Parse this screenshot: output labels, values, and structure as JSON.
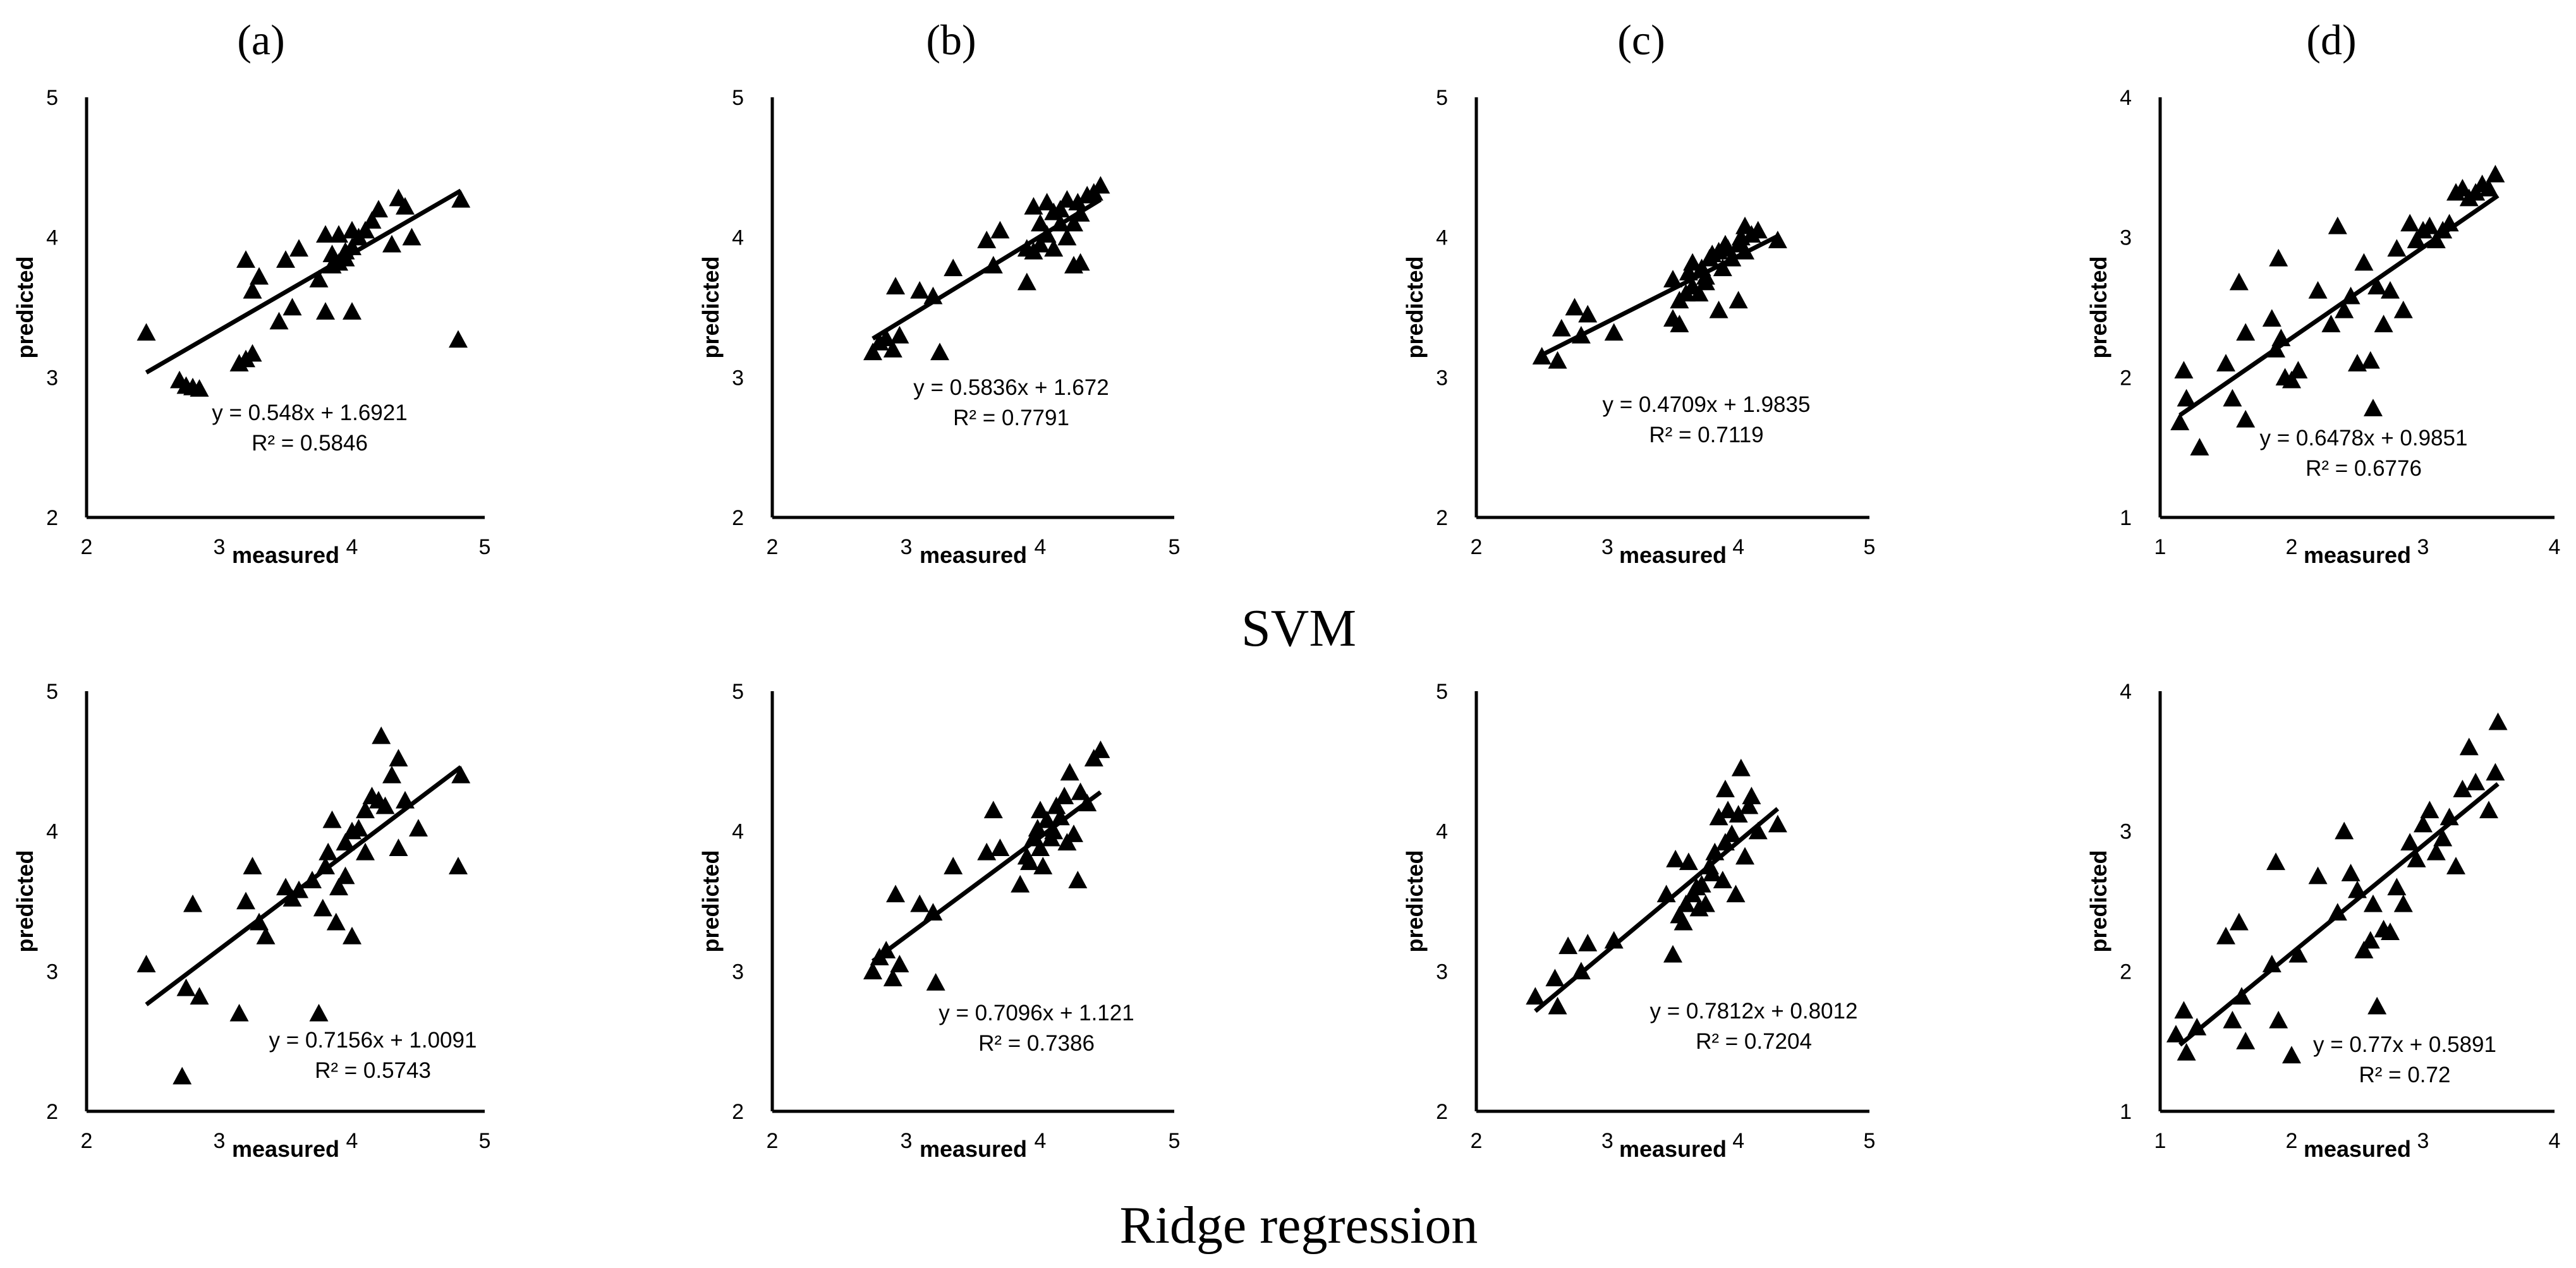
{
  "panel_labels": [
    "(a)",
    "(b)",
    "(c)",
    "(d)"
  ],
  "row_labels": [
    "SVM",
    "Ridge regression"
  ],
  "chart_data": [
    {
      "type": "scatter",
      "panel": "(a)",
      "model": "SVM",
      "xlabel": "measured",
      "ylabel": "predicted",
      "xlim": [
        2,
        5
      ],
      "ylim": [
        2,
        5
      ],
      "xticks": [
        "2",
        "3",
        "4",
        "5"
      ],
      "yticks": [
        "2",
        "3",
        "4",
        "5"
      ],
      "equation": "y = 0.548x + 1.6921",
      "r2_label": "R² = 0.5846",
      "fit": {
        "slope": 0.548,
        "intercept": 1.6921,
        "x_range": [
          2.45,
          4.82
        ]
      },
      "x": [
        2.45,
        2.7,
        2.75,
        2.8,
        2.85,
        3.15,
        3.2,
        3.2,
        3.25,
        3.3,
        3.25,
        3.45,
        3.5,
        3.55,
        3.6,
        3.75,
        3.8,
        3.8,
        3.85,
        3.9,
        3.9,
        3.95,
        4.0,
        4.0,
        4.0,
        4.05,
        4.1,
        4.15,
        4.2,
        4.3,
        4.35,
        4.4,
        4.45,
        4.8,
        4.82,
        3.85,
        3.95
      ],
      "y": [
        3.32,
        2.98,
        2.94,
        2.93,
        2.92,
        3.1,
        3.13,
        3.84,
        3.17,
        3.72,
        3.62,
        3.4,
        3.84,
        3.5,
        3.92,
        3.7,
        3.47,
        4.02,
        3.8,
        3.82,
        4.02,
        3.9,
        3.47,
        3.93,
        4.05,
        4.0,
        4.05,
        4.12,
        4.2,
        3.95,
        4.28,
        4.22,
        4.0,
        3.27,
        4.27,
        3.88,
        3.85
      ]
    },
    {
      "type": "scatter",
      "panel": "(b)",
      "model": "SVM",
      "xlabel": "measured",
      "ylabel": "predicted",
      "xlim": [
        2,
        5
      ],
      "ylim": [
        2,
        5
      ],
      "xticks": [
        "2",
        "3",
        "4",
        "5"
      ],
      "yticks": [
        "2",
        "3",
        "4",
        "5"
      ],
      "equation": "y = 0.5836x + 1.672",
      "r2_label": "R² = 0.7791",
      "fit": {
        "slope": 0.5836,
        "intercept": 1.672,
        "x_range": [
          2.75,
          4.45
        ]
      },
      "x": [
        2.75,
        2.8,
        2.85,
        2.9,
        2.92,
        2.95,
        3.1,
        3.2,
        3.25,
        3.35,
        3.6,
        3.65,
        3.7,
        3.9,
        3.95,
        3.95,
        4.0,
        4.0,
        4.05,
        4.05,
        4.1,
        4.1,
        4.15,
        4.15,
        4.2,
        4.2,
        4.25,
        4.25,
        4.3,
        4.3,
        4.35,
        4.4,
        4.45,
        3.9,
        4.28
      ],
      "y": [
        3.18,
        3.25,
        3.28,
        3.2,
        3.65,
        3.3,
        3.62,
        3.58,
        3.18,
        3.78,
        3.98,
        3.8,
        4.05,
        3.92,
        3.9,
        4.22,
        4.1,
        3.95,
        4.25,
        4.02,
        4.18,
        3.92,
        4.1,
        4.2,
        4.0,
        4.27,
        4.1,
        3.8,
        4.17,
        3.82,
        4.3,
        4.32,
        4.37,
        3.68,
        4.25
      ]
    },
    {
      "type": "scatter",
      "panel": "(c)",
      "model": "SVM",
      "xlabel": "measured",
      "ylabel": "predicted",
      "xlim": [
        2,
        5
      ],
      "ylim": [
        2,
        5
      ],
      "xticks": [
        "2",
        "3",
        "4",
        "5"
      ],
      "yticks": [
        "2",
        "3",
        "4",
        "5"
      ],
      "equation": "y = 0.4709x + 1.9835",
      "r2_label": "R² = 0.7119",
      "fit": {
        "slope": 0.4709,
        "intercept": 1.9835,
        "x_range": [
          2.5,
          4.3
        ]
      },
      "x": [
        2.5,
        2.62,
        2.65,
        2.75,
        2.8,
        2.85,
        3.05,
        3.5,
        3.5,
        3.55,
        3.6,
        3.62,
        3.65,
        3.65,
        3.7,
        3.72,
        3.75,
        3.78,
        3.8,
        3.85,
        3.85,
        3.88,
        3.9,
        3.92,
        3.95,
        4.0,
        4.0,
        4.02,
        4.05,
        4.05,
        4.1,
        4.15,
        4.3,
        3.55,
        3.75
      ],
      "y": [
        3.15,
        3.12,
        3.35,
        3.5,
        3.3,
        3.45,
        3.32,
        3.42,
        3.7,
        3.55,
        3.6,
        3.75,
        3.65,
        3.82,
        3.6,
        3.78,
        3.72,
        3.85,
        3.88,
        3.48,
        3.9,
        3.78,
        3.95,
        3.92,
        3.85,
        3.55,
        3.95,
        4.0,
        3.9,
        4.08,
        4.02,
        4.05,
        3.98,
        3.38,
        3.68
      ]
    },
    {
      "type": "scatter",
      "panel": "(d)",
      "model": "SVM",
      "xlabel": "measured",
      "ylabel": "predicted",
      "xlim": [
        1,
        4
      ],
      "ylim": [
        1,
        4
      ],
      "xticks": [
        "1",
        "2",
        "3",
        "4"
      ],
      "yticks": [
        "1",
        "2",
        "3",
        "4"
      ],
      "equation": "y = 0.6478x + 0.9851",
      "r2_label": "R² = 0.6776",
      "fit": {
        "slope": 0.6478,
        "intercept": 0.9851,
        "x_range": [
          1.15,
          3.57
        ]
      },
      "x": [
        1.15,
        1.18,
        1.2,
        1.3,
        1.5,
        1.55,
        1.6,
        1.65,
        1.65,
        1.85,
        1.88,
        1.9,
        1.92,
        1.95,
        2.0,
        2.05,
        2.2,
        2.3,
        2.35,
        2.4,
        2.45,
        2.5,
        2.6,
        2.62,
        2.65,
        2.7,
        2.75,
        2.8,
        2.85,
        2.9,
        2.95,
        3.0,
        3.05,
        3.1,
        3.15,
        3.2,
        3.25,
        3.3,
        3.35,
        3.4,
        3.45,
        3.5,
        3.55,
        2.55
      ],
      "y": [
        1.68,
        2.05,
        1.85,
        1.5,
        2.1,
        1.85,
        2.68,
        2.32,
        1.7,
        2.42,
        2.2,
        2.85,
        2.28,
        2.0,
        1.98,
        2.05,
        2.62,
        2.38,
        3.08,
        2.48,
        2.58,
        2.1,
        2.12,
        1.78,
        2.65,
        2.38,
        2.62,
        2.92,
        2.48,
        3.1,
        2.98,
        3.05,
        3.08,
        2.98,
        3.05,
        3.1,
        3.32,
        3.35,
        3.28,
        3.32,
        3.38,
        3.35,
        3.45,
        2.82
      ]
    },
    {
      "type": "scatter",
      "panel": "(a)",
      "model": "Ridge regression",
      "xlabel": "measured",
      "ylabel": "predicted",
      "xlim": [
        2,
        5
      ],
      "ylim": [
        2,
        5
      ],
      "xticks": [
        "2",
        "3",
        "4",
        "5"
      ],
      "yticks": [
        "2",
        "3",
        "4",
        "5"
      ],
      "equation": "y = 0.7156x + 1.0091",
      "r2_label": "R² = 0.5743",
      "fit": {
        "slope": 0.7156,
        "intercept": 1.0091,
        "x_range": [
          2.45,
          4.82
        ]
      },
      "x": [
        2.45,
        2.72,
        2.75,
        2.8,
        2.85,
        3.15,
        3.2,
        3.25,
        3.3,
        3.35,
        3.5,
        3.55,
        3.6,
        3.7,
        3.75,
        3.8,
        3.82,
        3.85,
        3.88,
        3.9,
        3.95,
        3.95,
        4.0,
        4.05,
        4.1,
        4.1,
        4.15,
        4.2,
        4.22,
        4.25,
        4.3,
        4.35,
        4.35,
        4.4,
        4.5,
        4.8,
        4.82,
        3.78,
        4.0
      ],
      "y": [
        3.05,
        2.25,
        2.88,
        3.48,
        2.82,
        2.7,
        3.5,
        3.75,
        3.35,
        3.25,
        3.6,
        3.52,
        3.58,
        3.65,
        2.7,
        3.75,
        3.85,
        4.08,
        3.35,
        3.6,
        3.92,
        3.68,
        3.25,
        4.02,
        4.15,
        3.85,
        4.25,
        4.22,
        4.68,
        4.18,
        4.4,
        4.52,
        3.88,
        4.22,
        4.02,
        3.75,
        4.4,
        3.45,
        4.0
      ]
    },
    {
      "type": "scatter",
      "panel": "(b)",
      "model": "Ridge regression",
      "xlabel": "measured",
      "ylabel": "predicted",
      "xlim": [
        2,
        5
      ],
      "ylim": [
        2,
        5
      ],
      "xticks": [
        "2",
        "3",
        "4",
        "5"
      ],
      "yticks": [
        "2",
        "3",
        "4",
        "5"
      ],
      "equation": "y = 0.7096x + 1.121",
      "r2_label": "R² = 0.7386",
      "fit": {
        "slope": 0.7096,
        "intercept": 1.121,
        "x_range": [
          2.75,
          4.45
        ]
      },
      "x": [
        2.75,
        2.8,
        2.85,
        2.9,
        2.92,
        2.95,
        3.1,
        3.2,
        3.22,
        3.35,
        3.6,
        3.65,
        3.7,
        3.85,
        3.9,
        3.92,
        3.95,
        3.98,
        4.0,
        4.0,
        4.02,
        4.05,
        4.08,
        4.1,
        4.12,
        4.15,
        4.18,
        4.2,
        4.22,
        4.25,
        4.28,
        4.3,
        4.35,
        4.4,
        4.45
      ],
      "y": [
        3.0,
        3.1,
        3.15,
        2.95,
        3.55,
        3.05,
        3.48,
        3.42,
        2.92,
        3.75,
        3.85,
        4.15,
        3.88,
        3.62,
        3.82,
        3.78,
        3.95,
        4.02,
        3.88,
        4.15,
        3.75,
        4.08,
        3.95,
        4.0,
        4.18,
        4.1,
        4.25,
        3.92,
        4.42,
        3.98,
        3.65,
        4.28,
        4.2,
        4.52,
        4.58
      ]
    },
    {
      "type": "scatter",
      "panel": "(c)",
      "model": "Ridge regression",
      "xlabel": "measured",
      "ylabel": "predicted",
      "xlim": [
        2,
        5
      ],
      "ylim": [
        2,
        5
      ],
      "xticks": [
        "2",
        "3",
        "4",
        "5"
      ],
      "yticks": [
        "2",
        "3",
        "4",
        "5"
      ],
      "equation": "y = 0.7812x + 0.8012",
      "r2_label": "R² = 0.7204",
      "fit": {
        "slope": 0.7812,
        "intercept": 0.8012,
        "x_range": [
          2.45,
          4.3
        ]
      },
      "x": [
        2.45,
        2.6,
        2.62,
        2.7,
        2.8,
        2.85,
        3.05,
        3.45,
        3.5,
        3.52,
        3.55,
        3.6,
        3.62,
        3.65,
        3.68,
        3.7,
        3.72,
        3.75,
        3.78,
        3.8,
        3.82,
        3.85,
        3.88,
        3.9,
        3.92,
        3.95,
        3.98,
        4.0,
        4.02,
        4.05,
        4.08,
        4.1,
        4.15,
        4.3,
        3.9,
        3.58
      ],
      "y": [
        2.82,
        2.95,
        2.75,
        3.18,
        3.0,
        3.2,
        3.22,
        3.55,
        3.12,
        3.8,
        3.4,
        3.48,
        3.78,
        3.55,
        3.6,
        3.45,
        3.62,
        3.48,
        3.75,
        3.7,
        3.85,
        4.1,
        3.65,
        4.3,
        4.15,
        3.98,
        3.55,
        4.12,
        4.45,
        3.82,
        4.18,
        4.25,
        4.0,
        4.05,
        3.92,
        3.35
      ]
    },
    {
      "type": "scatter",
      "panel": "(d)",
      "model": "Ridge regression",
      "xlabel": "measured",
      "ylabel": "predicted",
      "xlim": [
        1,
        4
      ],
      "ylim": [
        1,
        4
      ],
      "xticks": [
        "1",
        "2",
        "3",
        "4"
      ],
      "yticks": [
        "1",
        "2",
        "3",
        "4"
      ],
      "equation": "y = 0.77x + 0.5891",
      "r2_label": "R² = 0.72",
      "fit": {
        "slope": 0.77,
        "intercept": 0.5891,
        "x_range": [
          1.15,
          3.57
        ]
      },
      "x": [
        1.12,
        1.18,
        1.2,
        1.28,
        1.5,
        1.55,
        1.6,
        1.62,
        1.65,
        1.85,
        1.88,
        1.9,
        2.0,
        2.05,
        2.2,
        2.35,
        2.4,
        2.45,
        2.5,
        2.55,
        2.6,
        2.62,
        2.65,
        2.7,
        2.75,
        2.8,
        2.85,
        2.9,
        2.95,
        3.0,
        3.05,
        3.1,
        3.15,
        3.2,
        3.25,
        3.3,
        3.35,
        3.4,
        3.5,
        3.55,
        3.57
      ],
      "y": [
        1.55,
        1.72,
        1.42,
        1.6,
        2.25,
        1.65,
        2.35,
        1.82,
        1.5,
        2.05,
        2.78,
        1.65,
        1.4,
        2.12,
        2.68,
        2.42,
        3.0,
        2.7,
        2.58,
        2.15,
        2.22,
        2.48,
        1.75,
        2.3,
        2.28,
        2.6,
        2.48,
        2.92,
        2.8,
        3.05,
        3.15,
        2.85,
        2.95,
        3.1,
        2.75,
        3.3,
        3.6,
        3.35,
        3.15,
        3.42,
        3.78
      ]
    }
  ]
}
